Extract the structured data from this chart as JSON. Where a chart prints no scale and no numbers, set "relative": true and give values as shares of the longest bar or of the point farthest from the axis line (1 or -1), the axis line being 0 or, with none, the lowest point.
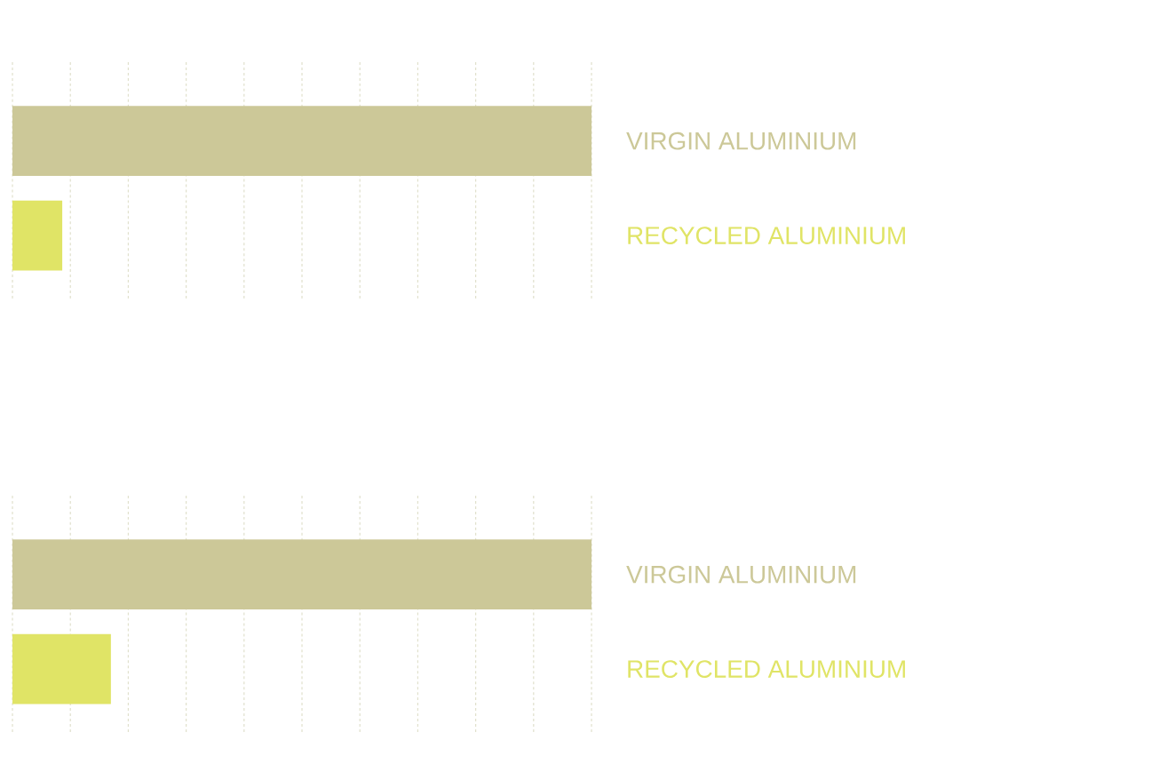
{
  "chart_data": [
    {
      "type": "bar",
      "orientation": "horizontal",
      "relative": true,
      "grid": "x",
      "categories": [
        "VIRGIN ALUMINIUM",
        "RECYCLED ALUMINIUM"
      ],
      "values": [
        1,
        0.086
      ],
      "colors": [
        "#ccc898",
        "#e0e466"
      ]
    },
    {
      "type": "bar",
      "orientation": "horizontal",
      "relative": true,
      "grid": "x",
      "categories": [
        "VIRGIN ALUMINIUM",
        "RECYCLED ALUMINIUM"
      ],
      "values": [
        1,
        0.17
      ],
      "colors": [
        "#ccc898",
        "#e0e466"
      ]
    }
  ]
}
